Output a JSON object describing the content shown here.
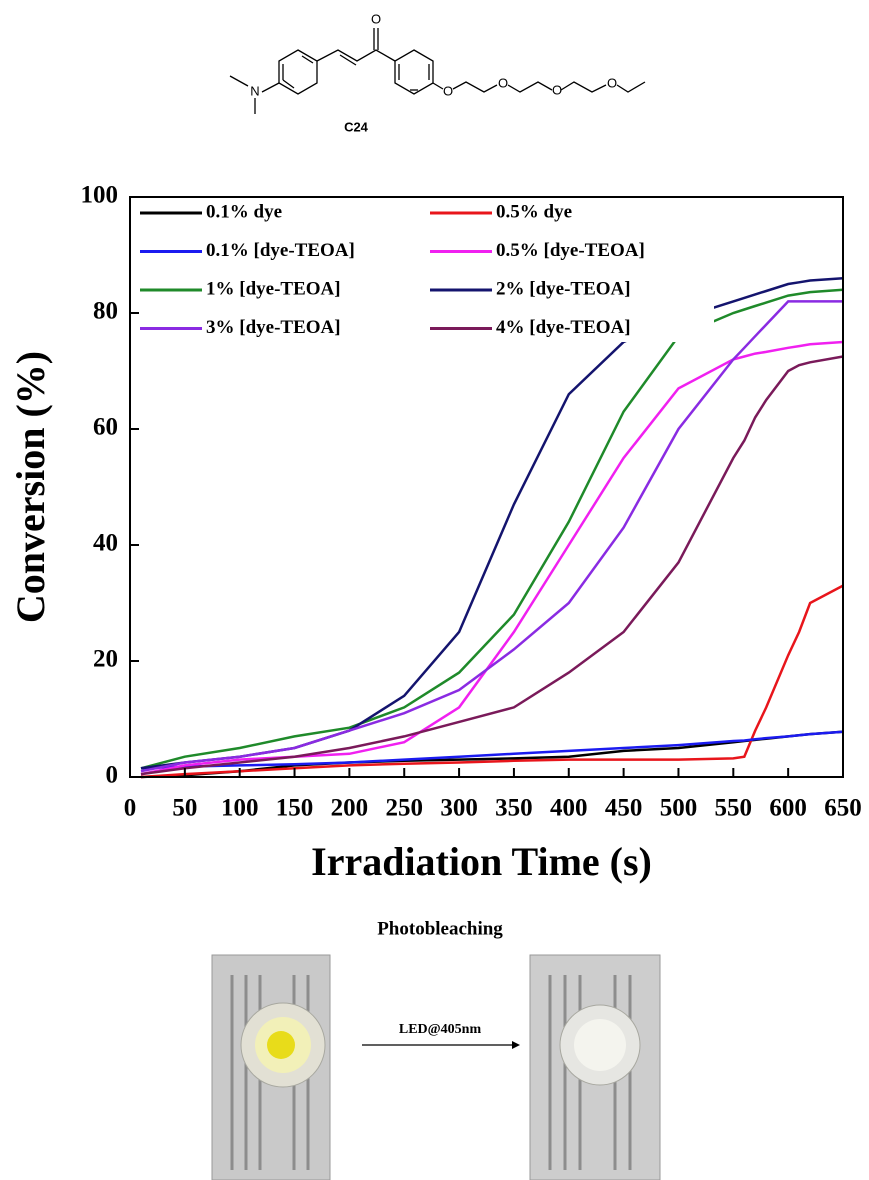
{
  "structure": {
    "atoms": [
      "N",
      "O",
      "O",
      "O",
      "O",
      "O"
    ],
    "label": "C24"
  },
  "chart_data": {
    "type": "line",
    "ylabel": "Conversion (%)",
    "xlabel": "Irradiation Time (s)",
    "x": [
      10,
      50,
      100,
      150,
      200,
      250,
      300,
      350,
      400,
      450,
      500,
      550,
      560,
      570,
      580,
      600,
      610,
      620,
      650
    ],
    "xlim": [
      0,
      650
    ],
    "xticks": [
      0,
      50,
      100,
      150,
      200,
      250,
      300,
      350,
      400,
      450,
      500,
      550,
      600,
      650
    ],
    "ylim": [
      0,
      100
    ],
    "yticks": [
      0,
      20,
      40,
      60,
      80,
      100
    ],
    "series": [
      {
        "name": "0.1% dye",
        "color": "#000000",
        "values": [
          0,
          0.3,
          1,
          2,
          2.5,
          2.8,
          3,
          3.2,
          3.5,
          4.5,
          5,
          6,
          6.2,
          6.4,
          6.6,
          7,
          7.2,
          7.4,
          7.8
        ]
      },
      {
        "name": "0.5% dye",
        "color": "#e8151b",
        "values": [
          0,
          0.5,
          1,
          1.5,
          2,
          2.3,
          2.5,
          2.8,
          3,
          3,
          3,
          3.2,
          3.5,
          8,
          12,
          21,
          25,
          30,
          33
        ]
      },
      {
        "name": "0.1%  [dye-TEOA]",
        "color": "#1b1bf0",
        "values": [
          1.5,
          1.8,
          2,
          2.2,
          2.5,
          3,
          3.5,
          4,
          4.5,
          5,
          5.5,
          6.2,
          6.3,
          6.5,
          6.7,
          7,
          7.2,
          7.4,
          7.8
        ]
      },
      {
        "name": "0.5%  [dye-TEOA]",
        "color": "#f020f0",
        "values": [
          0.5,
          2,
          3,
          3.5,
          4,
          6,
          12,
          25,
          40,
          55,
          67,
          72,
          72.5,
          73,
          73.3,
          74,
          74.3,
          74.6,
          75
        ]
      },
      {
        "name": "1%  [dye-TEOA]",
        "color": "#1f8a2a",
        "values": [
          1.5,
          3.5,
          5,
          7,
          8.5,
          12,
          18,
          28,
          44,
          63,
          76,
          80,
          80.6,
          81.2,
          81.8,
          83,
          83.3,
          83.6,
          84
        ]
      },
      {
        "name": "2%  [dye-TEOA]",
        "color": "#14146e",
        "values": [
          1.5,
          2.5,
          3.5,
          5,
          8,
          14,
          25,
          47,
          66,
          75,
          79,
          82,
          82.6,
          83.2,
          83.8,
          85,
          85.3,
          85.6,
          86
        ]
      },
      {
        "name": "3%  [dye-TEOA]",
        "color": "#8a2be2",
        "values": [
          1,
          2.5,
          3.5,
          5,
          8,
          11,
          15,
          22,
          30,
          43,
          60,
          72,
          74,
          76,
          78,
          82,
          82,
          82,
          82
        ]
      },
      {
        "name": "4%  [dye-TEOA]",
        "color": "#7a1a5a",
        "values": [
          0.5,
          1.5,
          2.5,
          3.5,
          5,
          7,
          9.5,
          12,
          18,
          25,
          37,
          55,
          58,
          62,
          65,
          70,
          71,
          71.5,
          72.5
        ]
      }
    ]
  },
  "photo": {
    "title": "Photobleaching",
    "arrow_label": "LED@405nm"
  }
}
